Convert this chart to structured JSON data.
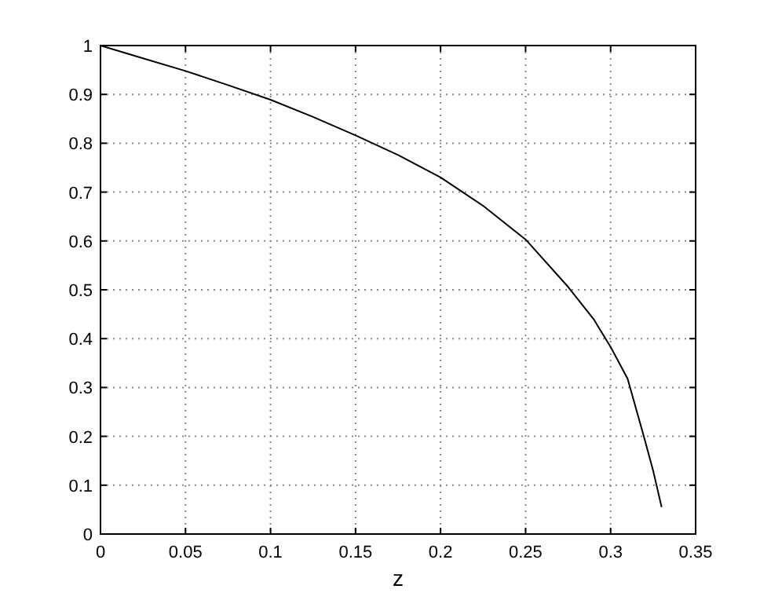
{
  "chart_data": {
    "type": "line",
    "xlabel": "z",
    "x": [
      0,
      0.025,
      0.05,
      0.075,
      0.1,
      0.125,
      0.15,
      0.175,
      0.2,
      0.225,
      0.25,
      0.275,
      0.29,
      0.3,
      0.31,
      0.32,
      0.325,
      0.33
    ],
    "series": [
      {
        "color": "#000000",
        "values": [
          1,
          0.974,
          0.948,
          0.919,
          0.889,
          0.854,
          0.816,
          0.776,
          0.73,
          0.672,
          0.603,
          0.506,
          0.44,
          0.383,
          0.318,
          0.194,
          0.13,
          0.055
        ]
      }
    ],
    "xlim": [
      0,
      0.35
    ],
    "xticks": [
      0,
      0.05,
      0.1,
      0.15,
      0.2,
      0.25,
      0.3,
      0.35
    ],
    "ylim": [
      0,
      1
    ],
    "yticks": [
      0,
      0.1,
      0.2,
      0.3,
      0.4,
      0.5,
      0.6,
      0.7,
      0.8,
      0.9,
      1
    ],
    "grid": true,
    "line_style": "solid",
    "marker": "none"
  }
}
